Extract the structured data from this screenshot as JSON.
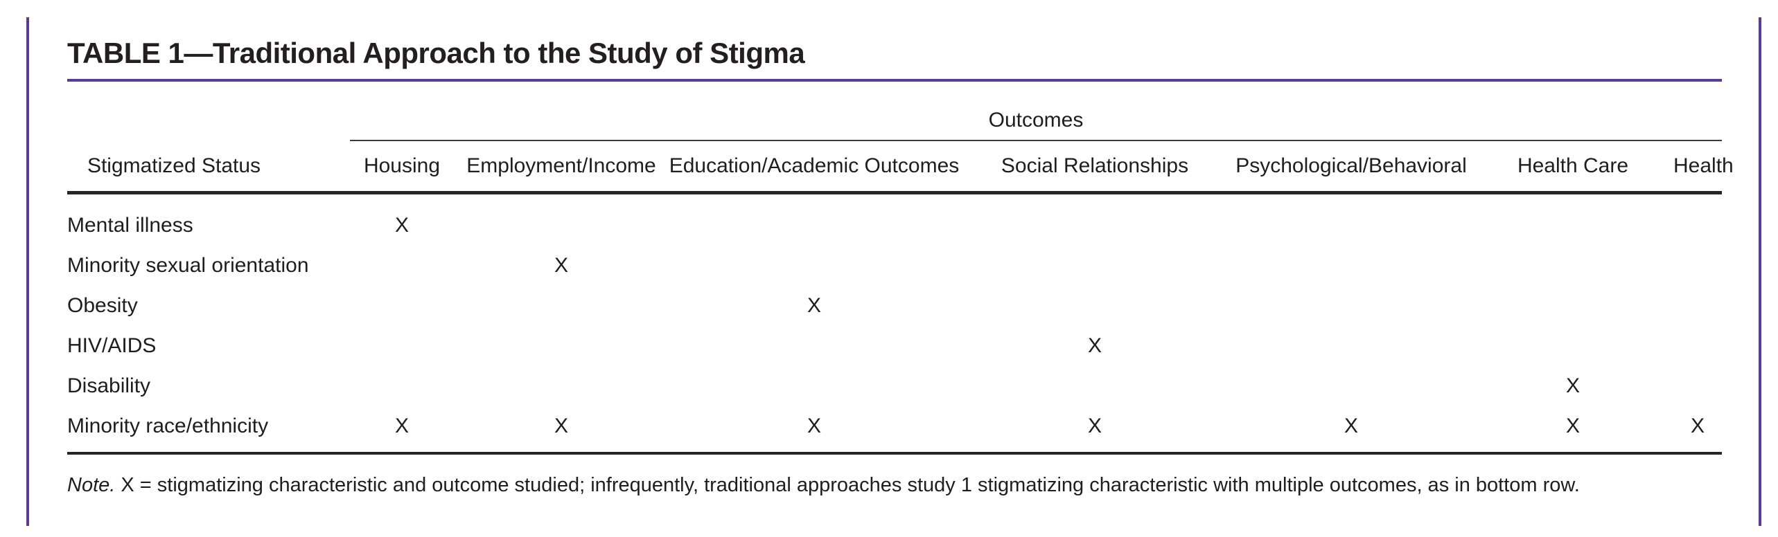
{
  "title": "TABLE 1—Traditional Approach to the Study of Stigma",
  "table": {
    "spanner": "Outcomes",
    "row_header": "Stigmatized Status",
    "columns": [
      "Housing",
      "Employment/Income",
      "Education/Academic Outcomes",
      "Social Relationships",
      "Psychological/Behavioral",
      "Health Care",
      "Health"
    ],
    "mark": "X",
    "rows": [
      {
        "label": "Mental illness",
        "marks": [
          1,
          0,
          0,
          0,
          0,
          0,
          0
        ]
      },
      {
        "label": "Minority sexual orientation",
        "marks": [
          0,
          1,
          0,
          0,
          0,
          0,
          0
        ]
      },
      {
        "label": "Obesity",
        "marks": [
          0,
          0,
          1,
          0,
          0,
          0,
          0
        ]
      },
      {
        "label": "HIV/AIDS",
        "marks": [
          0,
          0,
          0,
          1,
          0,
          0,
          0
        ]
      },
      {
        "label": "Disability",
        "marks": [
          0,
          0,
          0,
          0,
          0,
          1,
          0
        ]
      },
      {
        "label": "Minority race/ethnicity",
        "marks": [
          1,
          1,
          1,
          1,
          1,
          1,
          1
        ]
      }
    ]
  },
  "footnote": {
    "label": "Note.",
    "text": " X = stigmatizing characteristic and outcome studied; infrequently, traditional approaches study 1 stigmatizing characteristic with multiple outcomes, as in bottom row."
  },
  "colors": {
    "accent_purple": "#5b3b97",
    "rule_dark": "#262626",
    "text": "#1e1e1e"
  }
}
